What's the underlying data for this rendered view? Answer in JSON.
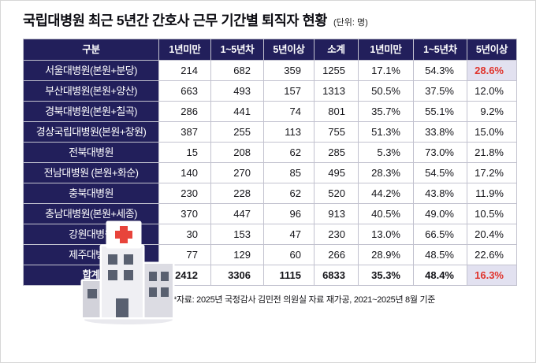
{
  "title": "국립대병원 최근 5년간 간호사 근무 기간별 퇴직자 현황",
  "unit_label": "(단위: 명)",
  "footnote": "*자료: 2025년 국정감사 김민전 의원실 자료 재가공, 2021~2025년 8월 기준",
  "colors": {
    "header_bg": "#221f5b",
    "highlight_bg": "#e2e1f0",
    "highlight_text": "#e0342c",
    "grid_line": "#c2c2cf",
    "cross_red": "#e8443b"
  },
  "icons": {
    "building": "hospital-building-icon"
  },
  "chart_data": {
    "type": "table",
    "title": "국립대병원 최근 5년간 간호사 근무 기간별 퇴직자 현황",
    "unit": "명",
    "columns": [
      "구분",
      "1년미만",
      "1~5년차",
      "5년이상",
      "소계",
      "1년미만",
      "1~5년차",
      "5년이상"
    ],
    "rows": [
      {
        "label": "서울대병원(본원+분당)",
        "values": [
          "214",
          "682",
          "359",
          "1255",
          "17.1%",
          "54.3%",
          "28.6%"
        ],
        "highlight_last": true,
        "total": false
      },
      {
        "label": "부산대병원(본원+양산)",
        "values": [
          "663",
          "493",
          "157",
          "1313",
          "50.5%",
          "37.5%",
          "12.0%"
        ],
        "highlight_last": false,
        "total": false
      },
      {
        "label": "경북대병원(본원+칠곡)",
        "values": [
          "286",
          "441",
          "74",
          "801",
          "35.7%",
          "55.1%",
          "9.2%"
        ],
        "highlight_last": false,
        "total": false
      },
      {
        "label": "경상국립대병원(본원+창원)",
        "values": [
          "387",
          "255",
          "113",
          "755",
          "51.3%",
          "33.8%",
          "15.0%"
        ],
        "highlight_last": false,
        "total": false
      },
      {
        "label": "전북대병원",
        "values": [
          "15",
          "208",
          "62",
          "285",
          "5.3%",
          "73.0%",
          "21.8%"
        ],
        "highlight_last": false,
        "total": false
      },
      {
        "label": "전남대병원 (본원+화순)",
        "values": [
          "140",
          "270",
          "85",
          "495",
          "28.3%",
          "54.5%",
          "17.2%"
        ],
        "highlight_last": false,
        "total": false
      },
      {
        "label": "충북대병원",
        "values": [
          "230",
          "228",
          "62",
          "520",
          "44.2%",
          "43.8%",
          "11.9%"
        ],
        "highlight_last": false,
        "total": false
      },
      {
        "label": "충남대병원(본원+세종)",
        "values": [
          "370",
          "447",
          "96",
          "913",
          "40.5%",
          "49.0%",
          "10.5%"
        ],
        "highlight_last": false,
        "total": false
      },
      {
        "label": "강원대병원",
        "values": [
          "30",
          "153",
          "47",
          "230",
          "13.0%",
          "66.5%",
          "20.4%"
        ],
        "highlight_last": false,
        "total": false
      },
      {
        "label": "제주대병원",
        "values": [
          "77",
          "129",
          "60",
          "266",
          "28.9%",
          "48.5%",
          "22.6%"
        ],
        "highlight_last": false,
        "total": false
      },
      {
        "label": "합계",
        "values": [
          "2412",
          "3306",
          "1115",
          "6833",
          "35.3%",
          "48.4%",
          "16.3%"
        ],
        "highlight_last": true,
        "total": true
      }
    ]
  }
}
